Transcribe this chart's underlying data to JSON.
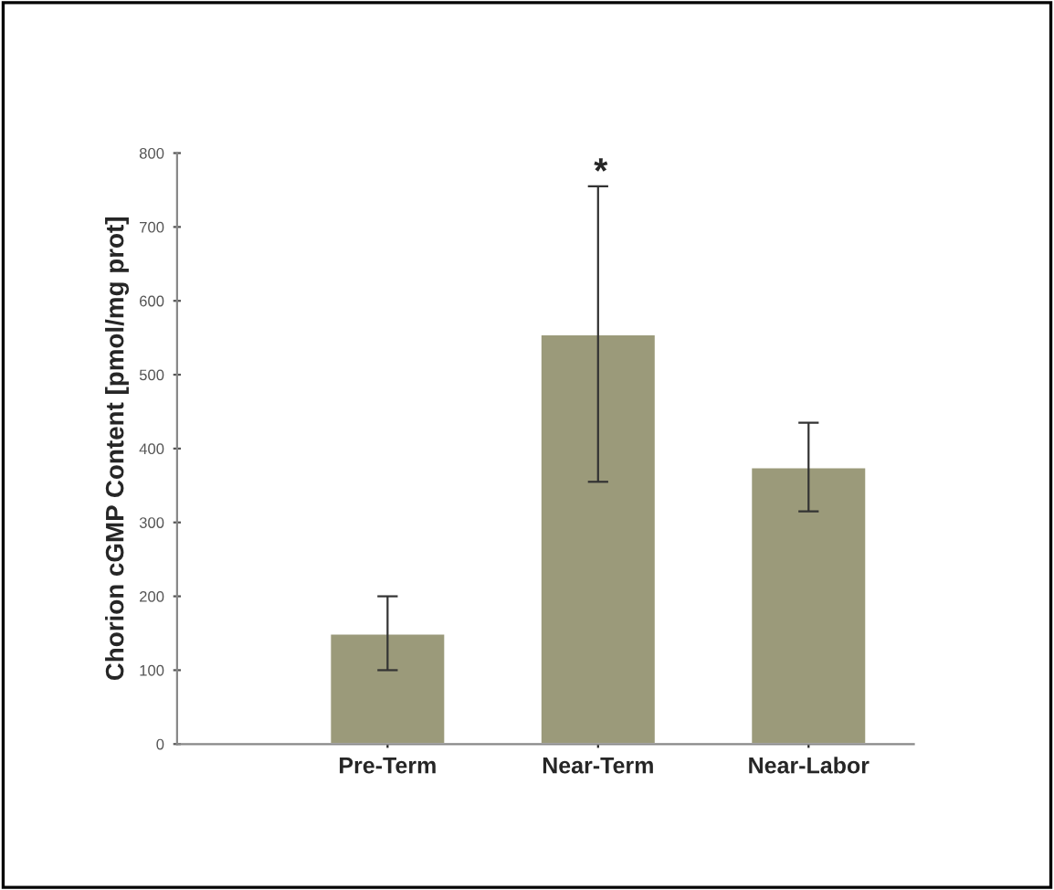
{
  "chart_data": {
    "type": "bar",
    "ylabel": "Chorion cGMP Content [pmol/mg prot]",
    "categories": [
      "Pre-Term",
      "Near-Term",
      "Near-Labor"
    ],
    "series": [
      {
        "color": "#9b9a7a",
        "values": [
          150,
          555,
          375
        ],
        "errors": [
          50,
          200,
          60
        ]
      }
    ],
    "ylim": [
      0,
      800
    ],
    "yticks": [
      0,
      100,
      200,
      300,
      400,
      500,
      600,
      700,
      800
    ],
    "grid": false,
    "legend": false,
    "annotations": [
      "*"
    ]
  }
}
